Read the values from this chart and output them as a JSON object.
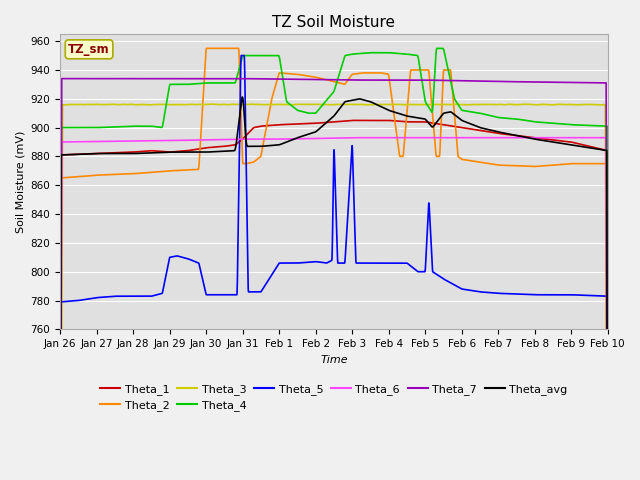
{
  "title": "TZ Soil Moisture",
  "xlabel": "Time",
  "ylabel": "Soil Moisture (mV)",
  "ylim": [
    760,
    965
  ],
  "yticks": [
    760,
    780,
    800,
    820,
    840,
    860,
    880,
    900,
    920,
    940,
    960
  ],
  "date_labels": [
    "Jan 26",
    "Jan 27",
    "Jan 28",
    "Jan 29",
    "Jan 30",
    "Jan 31",
    "Feb 1",
    "Feb 2",
    "Feb 3",
    "Feb 4",
    "Feb 5",
    "Feb 6",
    "Feb 7",
    "Feb 8",
    "Feb 9",
    "Feb 10"
  ],
  "series_colors": {
    "Theta_1": "#cc0000",
    "Theta_2": "#ff8800",
    "Theta_3": "#cccc00",
    "Theta_4": "#00cc00",
    "Theta_5": "#0000ff",
    "Theta_6": "#ff44ff",
    "Theta_7": "#9900bb",
    "Theta_avg": "#000000"
  },
  "legend_label": "TZ_sm",
  "plot_bg_color": "#e0e0e0",
  "fig_bg_color": "#f0f0f0",
  "grid_color": "#ffffff",
  "line_width": 1.2
}
